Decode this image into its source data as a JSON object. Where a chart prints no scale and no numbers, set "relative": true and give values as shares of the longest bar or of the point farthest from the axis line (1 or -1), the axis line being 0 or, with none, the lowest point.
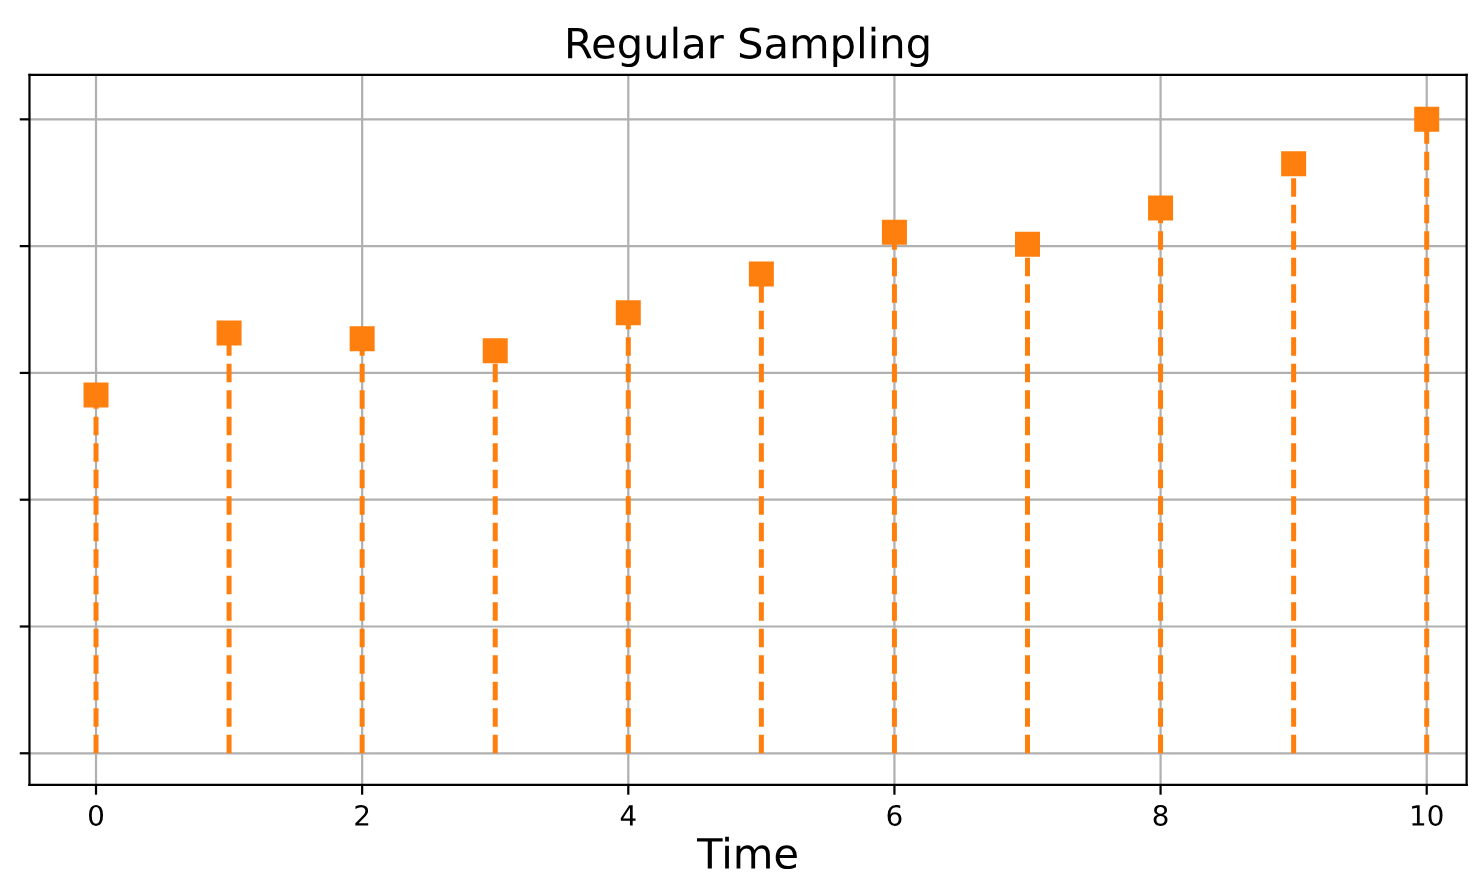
{
  "chart_data": {
    "type": "lollipop",
    "title": "Regular Sampling",
    "xlabel": "Time",
    "x": [
      0,
      1,
      2,
      3,
      4,
      5,
      6,
      7,
      8,
      9,
      10
    ],
    "series": [
      {
        "color": "#ff7f0e",
        "values": [
          0.565,
          0.663,
          0.654,
          0.635,
          0.695,
          0.756,
          0.822,
          0.803,
          0.86,
          0.93,
          1
        ]
      }
    ],
    "relative": true,
    "xlim": [
      -0.5,
      10.3
    ],
    "xticks": [
      0,
      2,
      4,
      6,
      8,
      10
    ],
    "grid": true,
    "marker": "square",
    "line_style": "dashed",
    "legend": false
  }
}
